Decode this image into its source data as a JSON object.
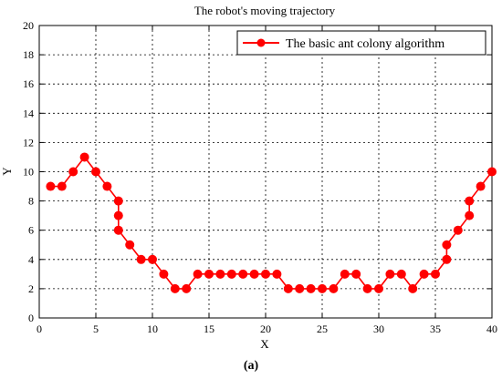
{
  "chart_data": {
    "type": "line",
    "title": "The robot's moving trajectory",
    "xlabel": "X",
    "ylabel": "Y",
    "xlim": [
      0,
      40
    ],
    "ylim": [
      0,
      20
    ],
    "xticks": [
      0,
      5,
      10,
      15,
      20,
      25,
      30,
      35,
      40
    ],
    "yticks": [
      0,
      2,
      4,
      6,
      8,
      10,
      12,
      14,
      16,
      18,
      20
    ],
    "grid": true,
    "legend_position": "top-right",
    "series": [
      {
        "name": "The basic ant colony algorithm",
        "color": "#ff0000",
        "marker": "circle",
        "x": [
          1,
          2,
          3,
          4,
          5,
          6,
          7,
          7,
          7,
          8,
          9,
          10,
          11,
          12,
          13,
          14,
          15,
          16,
          17,
          18,
          19,
          20,
          21,
          22,
          23,
          24,
          25,
          26,
          27,
          28,
          29,
          30,
          31,
          32,
          33,
          34,
          35,
          36,
          36,
          37,
          38,
          38,
          39,
          40
        ],
        "y": [
          9,
          9,
          10,
          11,
          10,
          9,
          8,
          7,
          6,
          5,
          4,
          4,
          3,
          2,
          2,
          3,
          3,
          3,
          3,
          3,
          3,
          3,
          3,
          2,
          2,
          2,
          2,
          2,
          3,
          3,
          2,
          2,
          3,
          3,
          2,
          3,
          3,
          4,
          5,
          6,
          7,
          8,
          9,
          10
        ]
      }
    ]
  },
  "caption": "(a)"
}
